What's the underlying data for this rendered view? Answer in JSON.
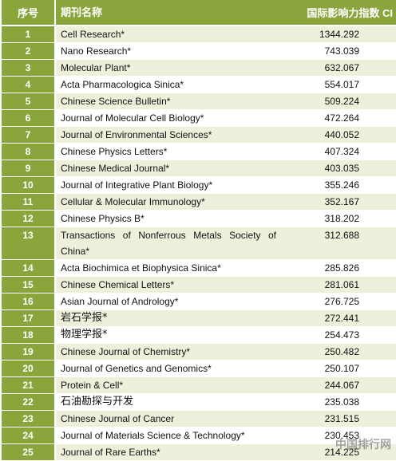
{
  "header": {
    "rank_label": "序号",
    "name_label": "期刊名称",
    "value_label": "国际影响力指数 CI"
  },
  "rows": [
    {
      "rank": "1",
      "name": "Cell Research*",
      "value": "1344.292"
    },
    {
      "rank": "2",
      "name": "Nano Research*",
      "value": "743.039"
    },
    {
      "rank": "3",
      "name": "Molecular Plant*",
      "value": "632.067"
    },
    {
      "rank": "4",
      "name": "Acta Pharmacologica Sinica*",
      "value": "554.017"
    },
    {
      "rank": "5",
      "name": "Chinese Science Bulletin*",
      "value": "509.224"
    },
    {
      "rank": "6",
      "name": "Journal of Molecular Cell Biology*",
      "value": "472.264"
    },
    {
      "rank": "7",
      "name": "Journal of Environmental Sciences*",
      "value": "440.052"
    },
    {
      "rank": "8",
      "name": "Chinese Physics Letters*",
      "value": "407.324"
    },
    {
      "rank": "9",
      "name": "Chinese Medical Journal*",
      "value": "403.035"
    },
    {
      "rank": "10",
      "name": "Journal of Integrative Plant Biology*",
      "value": "355.246"
    },
    {
      "rank": "11",
      "name": "Cellular & Molecular Immunology*",
      "value": "352.167"
    },
    {
      "rank": "12",
      "name": "Chinese Physics B*",
      "value": "318.202"
    },
    {
      "rank": "13",
      "name": "Transactions of Nonferrous Metals Society of China*",
      "value": "312.688"
    },
    {
      "rank": "14",
      "name": "Acta Biochimica et Biophysica Sinica*",
      "value": "285.826"
    },
    {
      "rank": "15",
      "name": "Chinese Chemical Letters*",
      "value": "281.061"
    },
    {
      "rank": "16",
      "name": "Asian Journal of Andrology*",
      "value": "276.725"
    },
    {
      "rank": "17",
      "name": "岩石学报*",
      "value": "272.441"
    },
    {
      "rank": "18",
      "name": "物理学报*",
      "value": "254.473"
    },
    {
      "rank": "19",
      "name": "Chinese Journal of Chemistry*",
      "value": "250.482"
    },
    {
      "rank": "20",
      "name": "Journal of Genetics and Genomics*",
      "value": "250.107"
    },
    {
      "rank": "21",
      "name": "Protein & Cell*",
      "value": "244.067"
    },
    {
      "rank": "22",
      "name": "石油勘探与开发",
      "value": "235.038"
    },
    {
      "rank": "23",
      "name": "Chinese Journal of Cancer",
      "value": "231.515"
    },
    {
      "rank": "24",
      "name": "Journal of Materials Science & Technology*",
      "value": "230.453"
    },
    {
      "rank": "25",
      "name": "Journal of Rare Earths*",
      "value": "214.225"
    }
  ],
  "watermark": "中国排行网"
}
